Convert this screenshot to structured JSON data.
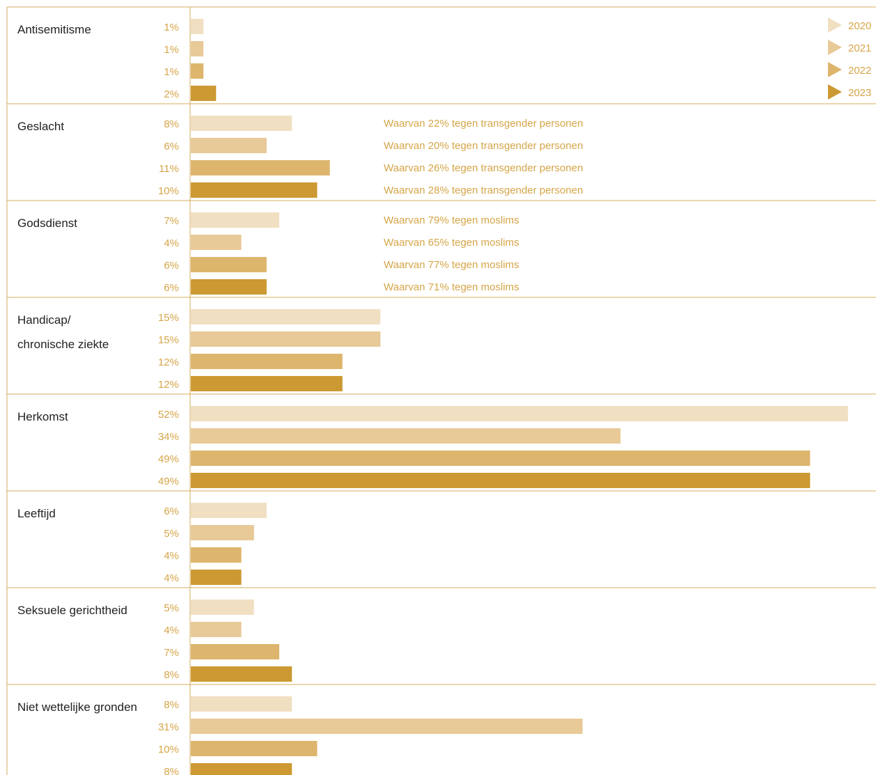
{
  "colors": {
    "2020": "#f1dfc2",
    "2021": "#e8c998",
    "2022": "#ddb56d",
    "2023": "#cc9932",
    "label": "#d6a548",
    "rule": "#d4ac5e"
  },
  "chart_data": {
    "type": "bar",
    "orientation": "horizontal",
    "title": "",
    "xlabel": "",
    "ylabel": "",
    "xlim": [
      0,
      54
    ],
    "grid": false,
    "legend_position": "top-right",
    "series": [
      {
        "name": "2020"
      },
      {
        "name": "2021"
      },
      {
        "name": "2022"
      },
      {
        "name": "2023"
      }
    ],
    "groups": [
      {
        "category": "Antisemitisme",
        "values": [
          1,
          1,
          1,
          2
        ],
        "labels": [
          "1%",
          "1%",
          "1%",
          "2%"
        ],
        "notes": []
      },
      {
        "category": "Geslacht",
        "values": [
          8,
          6,
          11,
          10
        ],
        "labels": [
          "8%",
          "6%",
          "11%",
          "10%"
        ],
        "notes": [
          "Waarvan 22% tegen transgender personen",
          "Waarvan 20% tegen transgender personen",
          "Waarvan 26% tegen transgender personen",
          "Waarvan 28% tegen transgender personen"
        ]
      },
      {
        "category": "Godsdienst",
        "values": [
          7,
          4,
          6,
          6
        ],
        "labels": [
          "7%",
          "4%",
          "6%",
          "6%"
        ],
        "notes": [
          "Waarvan 79% tegen moslims",
          "Waarvan 65% tegen moslims",
          "Waarvan 77% tegen moslims",
          "Waarvan 71% tegen moslims"
        ]
      },
      {
        "category": "Handicap/\nchronische ziekte",
        "values": [
          15,
          15,
          12,
          12
        ],
        "labels": [
          "15%",
          "15%",
          "12%",
          "12%"
        ],
        "notes": []
      },
      {
        "category": "Herkomst",
        "values": [
          52,
          34,
          49,
          49
        ],
        "labels": [
          "52%",
          "34%",
          "49%",
          "49%"
        ],
        "notes": []
      },
      {
        "category": "Leeftijd",
        "values": [
          6,
          5,
          4,
          4
        ],
        "labels": [
          "6%",
          "5%",
          "4%",
          "4%"
        ],
        "notes": []
      },
      {
        "category": "Seksuele gerichtheid",
        "values": [
          5,
          4,
          7,
          8
        ],
        "labels": [
          "5%",
          "4%",
          "7%",
          "8%"
        ],
        "notes": []
      },
      {
        "category": "Niet wettelijke gronden",
        "values": [
          8,
          31,
          10,
          8
        ],
        "labels": [
          "8%",
          "31%",
          "10%",
          "8%"
        ],
        "notes": []
      }
    ]
  }
}
